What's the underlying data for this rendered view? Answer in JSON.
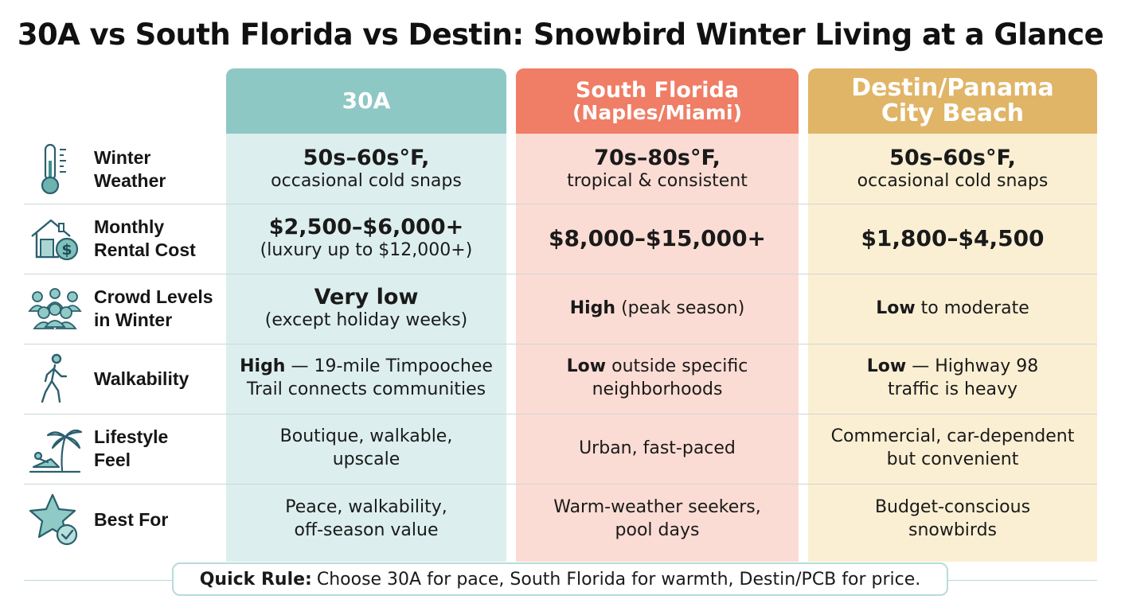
{
  "title": "30A vs South Florida vs Destin: Snowbird Winter Living at a Glance",
  "columns": [
    {
      "line1": "30A",
      "line2": ""
    },
    {
      "line1": "South Florida",
      "line2": "(Naples/Miami)"
    },
    {
      "line1": "Destin/Panama",
      "line2": "City Beach"
    }
  ],
  "rows": [
    {
      "icon": "thermometer-icon",
      "label": [
        "Winter",
        "Weather"
      ],
      "cells": [
        {
          "big": "50s–60s°F,",
          "text": "occasional cold snaps"
        },
        {
          "big": "70s–80s°F,",
          "text": "tropical & consistent"
        },
        {
          "big": "50s–60s°F,",
          "text": "occasional cold snaps"
        }
      ]
    },
    {
      "icon": "house-dollar-icon",
      "label": [
        "Monthly",
        "Rental Cost"
      ],
      "cells": [
        {
          "big": "$2,500–$6,000+",
          "text": "(luxury up to $12,000+)"
        },
        {
          "bigonly": "$8,000–$15,000+"
        },
        {
          "bigonly": "$1,800–$4,500"
        }
      ]
    },
    {
      "icon": "crowd-icon",
      "label": [
        "Crowd Levels",
        "in Winter"
      ],
      "cells": [
        {
          "big": "Very low",
          "text": "(except holiday weeks)"
        },
        {
          "bold": "High",
          "text": " (peak season)"
        },
        {
          "bold": "Low",
          "text": " to moderate"
        }
      ]
    },
    {
      "icon": "walking-person-icon",
      "label": [
        "Walkability"
      ],
      "cells": [
        {
          "bold": "High",
          "text": " — 19-mile Timpoochee",
          "line2": "Trail connects communities"
        },
        {
          "bold": "Low",
          "text": " outside specific",
          "line2": "neighborhoods"
        },
        {
          "bold": "Low",
          "text": " — Highway 98",
          "line2": "traffic is heavy"
        }
      ]
    },
    {
      "icon": "beach-lounge-icon",
      "label": [
        "Lifestyle",
        "Feel"
      ],
      "cells": [
        {
          "text": "Boutique, walkable,",
          "line2": "upscale"
        },
        {
          "text": "Urban, fast-paced"
        },
        {
          "text": "Commercial, car-dependent",
          "line2": "but convenient"
        }
      ]
    },
    {
      "icon": "star-check-icon",
      "label": [
        "Best For"
      ],
      "cells": [
        {
          "text": "Peace, walkability,",
          "line2": "off-season value"
        },
        {
          "text": "Warm-weather seekers,",
          "line2": "pool days"
        },
        {
          "text": "Budget-conscious",
          "line2": "snowbirds"
        }
      ]
    }
  ],
  "quick_rule": {
    "label": "Quick Rule:",
    "text": "Choose 30A for pace, South Florida for warmth, Destin/PCB for price."
  },
  "colors": {
    "col_30a_header": "#8ec8c4",
    "col_30a_body": "#dcefee",
    "col_sfl_header": "#f07d65",
    "col_sfl_body": "#fbdcd4",
    "col_destin_header": "#e0b567",
    "col_destin_body": "#fbefd3",
    "icon_teal": "#3f8f8c"
  }
}
